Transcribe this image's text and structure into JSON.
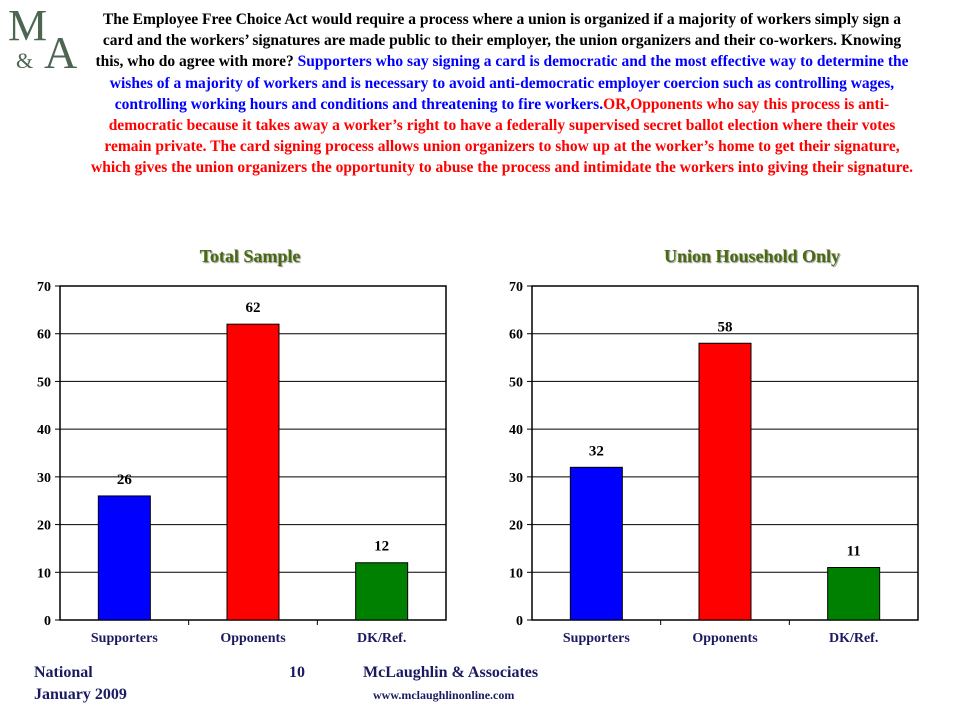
{
  "logo": {
    "text_top": "M",
    "text_amp": "&",
    "text_bottom": "A"
  },
  "question": {
    "intro": "The Employee Free Choice Act would require a process where a union is organized if a majority of workers simply sign a card and the workers’ signatures are made public to their employer, the union organizers and their co-workers. Knowing this, who do agree with more?",
    "supporters_text": "Supporters who say signing a card is democratic and the most effective way to determine the wishes of a majority of workers and is necessary to avoid anti-democratic employer coercion such as controlling wages, controlling working hours and conditions and threatening to fire workers.",
    "or_text": "OR,",
    "opponents_text": "Opponents who say this process is anti-democratic because it takes away a worker’s right to have a federally supervised secret ballot election where their votes remain private. The card signing process allows union organizers to show up at the worker’s home to get their signature, which gives the union organizers the opportunity to abuse the process and intimidate the workers into giving their signature."
  },
  "colors": {
    "supporters": "#0000ff",
    "opponents": "#ff0000",
    "dk": "#008000"
  },
  "chart_data": [
    {
      "type": "bar",
      "title": "Total Sample",
      "categories": [
        "Supporters",
        "Opponents",
        "DK/Ref."
      ],
      "values": [
        26,
        62,
        12
      ],
      "ylim": [
        0,
        70
      ],
      "yticks": [
        "0",
        "10",
        "20",
        "30",
        "40",
        "50",
        "60",
        "70"
      ],
      "grid": true,
      "legend": "none"
    },
    {
      "type": "bar",
      "title": "Union Household Only",
      "categories": [
        "Supporters",
        "Opponents",
        "DK/Ref."
      ],
      "values": [
        32,
        58,
        11
      ],
      "ylim": [
        0,
        70
      ],
      "yticks": [
        "0",
        "10",
        "20",
        "30",
        "40",
        "50",
        "60",
        "70"
      ],
      "grid": true,
      "legend": "none"
    }
  ],
  "footer": {
    "left_line1": "National",
    "left_line2": "January 2009",
    "page_number": "10",
    "company": "McLaughlin & Associates",
    "website": "www.mclaughlinonline.com"
  }
}
